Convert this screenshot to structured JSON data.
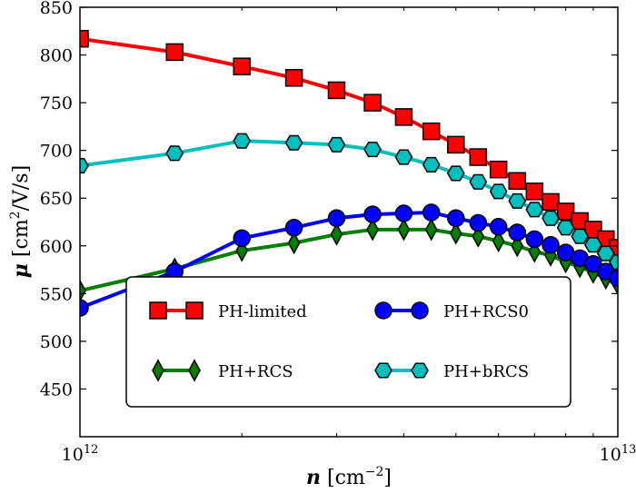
{
  "chart_data": {
    "type": "line",
    "xlabel_var": "n",
    "xlabel_unit": "[cm",
    "xlabel_exp": "−2",
    "xlabel_close": "]",
    "ylabel_var": "μ",
    "ylabel_unit": "[cm",
    "ylabel_exp": "2",
    "ylabel_rest": "/V/s]",
    "xscale": "log",
    "xlim": [
      1000000000000.0,
      10000000000000.0
    ],
    "ylim": [
      400,
      850
    ],
    "xticks": [
      {
        "base": "10",
        "exp": "12"
      },
      {
        "base": "10",
        "exp": "13"
      }
    ],
    "yticks": [
      "450",
      "500",
      "550",
      "600",
      "650",
      "700",
      "750",
      "800",
      "850"
    ],
    "grid": false,
    "legend_position": "lower-center",
    "x": [
      1000000000000.0,
      1500000000000.0,
      2000000000000.0,
      2500000000000.0,
      3000000000000.0,
      3500000000000.0,
      4000000000000.0,
      4500000000000.0,
      5000000000000.0,
      5500000000000.0,
      6000000000000.0,
      6500000000000.0,
      7000000000000.0,
      7500000000000.0,
      8000000000000.0,
      8500000000000.0,
      9000000000000.0,
      9500000000000.0,
      10000000000000.0
    ],
    "series": [
      {
        "name": "PH-limited",
        "color": "#ff0000",
        "marker": "square",
        "values": [
          817,
          803,
          788,
          776,
          763,
          750,
          735,
          720,
          706,
          693,
          680,
          668,
          657,
          646,
          636,
          626,
          617,
          607,
          598
        ]
      },
      {
        "name": "PH+RCS",
        "color": "#007f00",
        "marker": "thin-diamond",
        "values": [
          553,
          576,
          595,
          603,
          612,
          617,
          617,
          617,
          613,
          610,
          605,
          600,
          594,
          590,
          583,
          578,
          572,
          566,
          560
        ]
      },
      {
        "name": "PH+RCS0",
        "color": "#0000ff",
        "marker": "circle",
        "values": [
          535,
          573,
          608,
          619,
          629,
          633,
          634,
          635,
          629,
          624,
          620,
          614,
          607,
          601,
          593,
          587,
          581,
          573,
          566
        ]
      },
      {
        "name": "PH+bRCS",
        "color": "#00bfbf",
        "marker": "hexagon",
        "values": [
          684,
          697,
          710,
          708,
          706,
          701,
          693,
          685,
          676,
          667,
          657,
          647,
          638,
          629,
          619,
          610,
          601,
          592,
          583
        ]
      }
    ]
  }
}
